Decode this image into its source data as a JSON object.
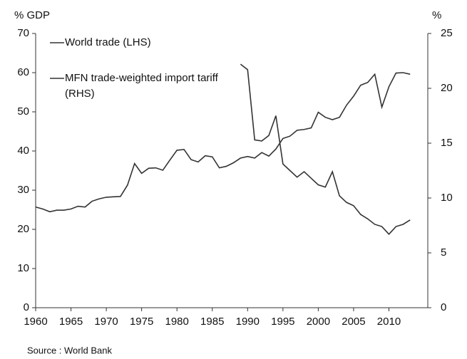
{
  "chart_data": {
    "type": "line",
    "y_label": "% GDP",
    "y2_label": "%",
    "source": "Source : World Bank",
    "x": [
      1960,
      1961,
      1962,
      1963,
      1964,
      1965,
      1966,
      1967,
      1968,
      1969,
      1970,
      1971,
      1972,
      1973,
      1974,
      1975,
      1976,
      1977,
      1978,
      1979,
      1980,
      1981,
      1982,
      1983,
      1984,
      1985,
      1986,
      1987,
      1988,
      1989,
      1990,
      1991,
      1992,
      1993,
      1994,
      1995,
      1996,
      1997,
      1998,
      1999,
      2000,
      2001,
      2002,
      2003,
      2004,
      2005,
      2006,
      2007,
      2008,
      2009,
      2010,
      2011,
      2012,
      2013
    ],
    "series": [
      {
        "name": "World trade (LHS)",
        "color": "#333333",
        "values": [
          25.7,
          25.2,
          24.5,
          24.9,
          24.9,
          25.2,
          25.9,
          25.7,
          27.2,
          27.8,
          28.2,
          28.3,
          28.4,
          31.3,
          36.8,
          34.3,
          35.6,
          35.7,
          35.1,
          37.7,
          40.2,
          40.4,
          37.8,
          37.2,
          38.8,
          38.5,
          35.7,
          36.1,
          37.0,
          38.2,
          38.6,
          38.2,
          39.6,
          38.7,
          40.5,
          43.2,
          43.8,
          45.3,
          45.5,
          45.9,
          49.9,
          48.6,
          48.0,
          48.6,
          51.7,
          54.0,
          56.8,
          57.5,
          59.6,
          51.2,
          56.4,
          59.9,
          60.0,
          59.6
        ]
      },
      {
        "name": "MFN trade-weighted import tariff (RHS)",
        "color": "#333333",
        "axis": "y2",
        "values": [
          null,
          null,
          null,
          null,
          null,
          null,
          null,
          null,
          null,
          null,
          null,
          null,
          null,
          null,
          null,
          null,
          null,
          null,
          null,
          null,
          null,
          null,
          null,
          null,
          null,
          null,
          null,
          null,
          null,
          22.2,
          21.7,
          15.3,
          15.2,
          15.7,
          17.5,
          13.1,
          12.5,
          11.9,
          12.4,
          11.8,
          11.2,
          11.0,
          12.4,
          10.2,
          9.6,
          9.3,
          8.5,
          8.1,
          7.6,
          7.4,
          6.7,
          7.4,
          7.6,
          8.0
        ]
      }
    ],
    "xlim": [
      1960,
      2015.5
    ],
    "xticks": [
      1960,
      1965,
      1970,
      1975,
      1980,
      1985,
      1990,
      1995,
      2000,
      2005,
      2010
    ],
    "ylim": [
      0,
      70
    ],
    "yticks": [
      0,
      10,
      20,
      30,
      40,
      50,
      60,
      70
    ],
    "y2lim": [
      0,
      25
    ],
    "y2ticks": [
      0,
      5,
      10,
      15,
      20,
      25
    ],
    "grid": false
  }
}
